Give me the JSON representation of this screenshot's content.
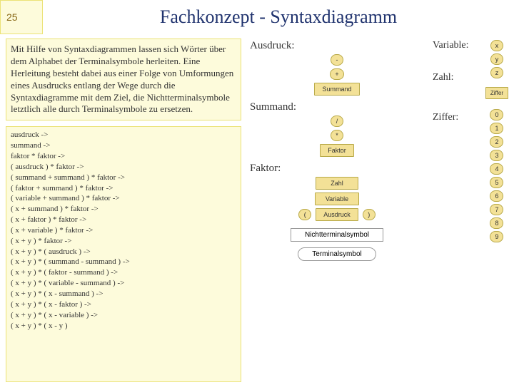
{
  "page_number": "25",
  "title": "Fachkonzept - Syntaxdiagramm",
  "paragraph": "Mit Hilfe von Syntaxdiagrammen lassen sich Wörter über dem Alphabet der Terminalsymbole herleiten. Eine Herleitung besteht dabei aus einer Folge von Umformungen eines Ausdrucks entlang der Wege durch die Syntaxdiagramme mit dem Ziel, die Nichtterminalsymbole letztlich alle durch Terminalsymbole zu ersetzen.",
  "derivation": [
    "ausdruck ->",
    "summand ->",
    "faktor * faktor ->",
    "( ausdruck ) * faktor ->",
    "( summand + summand ) * faktor ->",
    "( faktor + summand ) * faktor ->",
    "( variable + summand ) * faktor ->",
    "( x + summand ) * faktor ->",
    "( x + faktor ) * faktor ->",
    "( x + variable ) * faktor ->",
    "( x + y ) * faktor ->",
    "( x + y ) * ( ausdruck ) ->",
    "( x + y ) * ( summand - summand ) ->",
    "( x + y ) * ( faktor - summand ) ->",
    "( x + y ) * ( variable - summand ) ->",
    "( x + y ) * ( x - summand ) ->",
    "( x + y ) * ( x - faktor ) ->",
    "( x + y ) * ( x - variable ) ->",
    "( x + y ) * ( x - y )"
  ],
  "labels": {
    "ausdruck": "Ausdruck:",
    "summand": "Summand:",
    "faktor": "Faktor:",
    "variable": "Variable:",
    "zahl": "Zahl:",
    "ziffer": "Ziffer:"
  },
  "nonterminals": {
    "summand": "Summand",
    "faktor": "Faktor",
    "zahl": "Zahl",
    "variable": "Variable",
    "ausdruck": "Ausdruck",
    "ziffer": "Ziffer"
  },
  "terminals": {
    "minus": "-",
    "plus": "+",
    "slash": "/",
    "star": "*",
    "lparen": "(",
    "rparen": ")",
    "x": "x",
    "y": "y",
    "z": "z"
  },
  "digits": [
    "0",
    "1",
    "2",
    "3",
    "4",
    "5",
    "6",
    "7",
    "8",
    "9"
  ],
  "legend": {
    "nonterminal": "Nichtterminalsymbol",
    "terminal": "Terminalsymbol"
  },
  "colors": {
    "page_bg": "#ffffff",
    "box_bg": "#fdfbdb",
    "box_border": "#ebe276",
    "title_color": "#20336e",
    "symbol_bg": "#f3e197",
    "symbol_border": "#b8a948"
  }
}
